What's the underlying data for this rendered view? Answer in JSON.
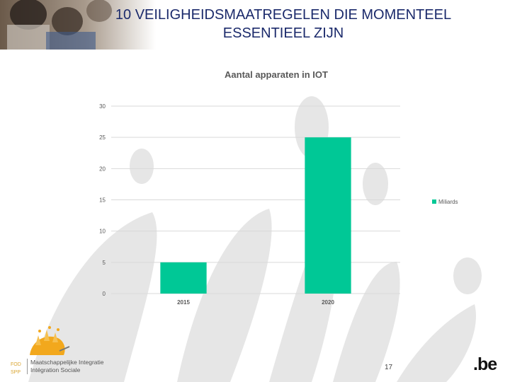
{
  "slide": {
    "title_line1": "10 VEILIGHEIDSMAATREGELEN DIE MOMENTEEL",
    "title_line2": "ESSENTIEEL ZIJN",
    "page_number": "17"
  },
  "footer": {
    "fod_line1": "FOD",
    "fod_line2": "SPP",
    "org_line1": "Maatschappelijke Integratie",
    "org_line2": "Intégration Sociale",
    "be_logo": ".be"
  },
  "colors": {
    "title": "#1b2a6b",
    "bar": "#00c896",
    "watermark": "#e6e6e6",
    "logo": "#f2a81d"
  },
  "chart_data": {
    "type": "bar",
    "title": "Aantal apparaten in IOT",
    "categories": [
      "2015",
      "2020"
    ],
    "series": [
      {
        "name": "Miliards",
        "values": [
          5,
          25
        ]
      }
    ],
    "y_ticks": [
      "0",
      "5",
      "10",
      "15",
      "20",
      "25",
      "30"
    ],
    "ylim": [
      0,
      30
    ],
    "grid": true,
    "legend": "right",
    "xlabel": "",
    "ylabel": ""
  }
}
